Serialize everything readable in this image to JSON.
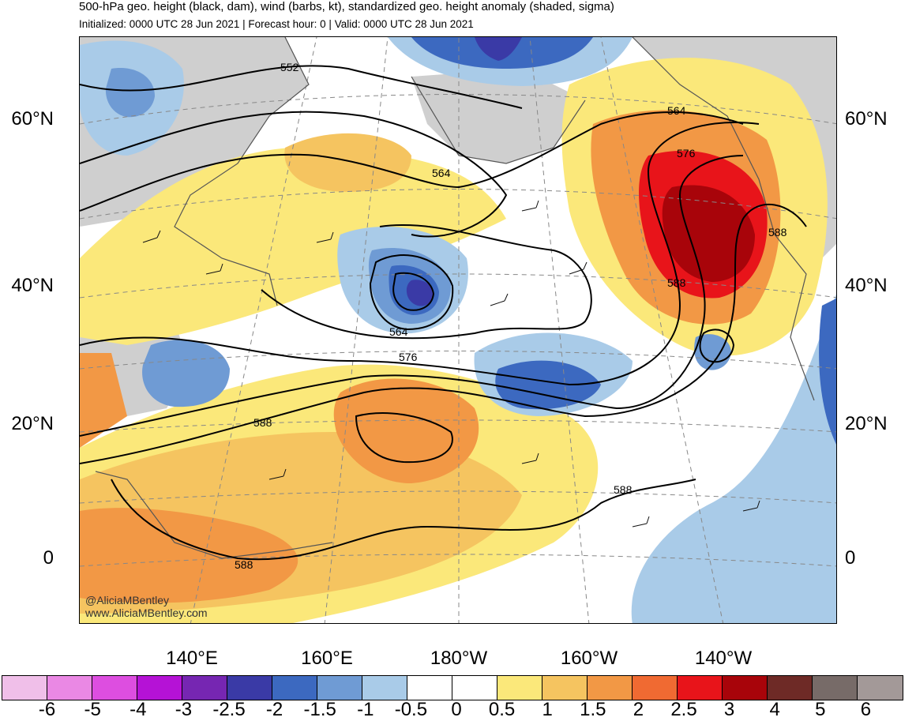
{
  "header": {
    "title": "500-hPa geo. height (black, dam), wind (barbs, kt), standardized geo. height anomaly (shaded, sigma)",
    "subtitle": "Initialized: 0000 UTC 28 Jun 2021 | Forecast hour: 0 | Valid: 0000 UTC 28 Jun 2021"
  },
  "axes": {
    "lat_labels": [
      "60°N",
      "40°N",
      "20°N",
      "0"
    ],
    "lon_labels": [
      "140°E",
      "160°E",
      "180°W",
      "160°W",
      "140°W"
    ]
  },
  "contour_labels": [
    "552",
    "564",
    "564",
    "564",
    "576",
    "576",
    "588",
    "588",
    "588",
    "588",
    "588"
  ],
  "credits": {
    "handle": "@AliciaMBentley",
    "website": "www.AliciaMBentley.com"
  },
  "colorbar": {
    "labels": [
      "-6",
      "-5",
      "-4",
      "-3",
      "-2.5",
      "-2",
      "-1.5",
      "-1",
      "-0.5",
      "0",
      "0.5",
      "1",
      "1.5",
      "2",
      "2.5",
      "3",
      "4",
      "5",
      "6"
    ],
    "colors": [
      "#f0bfe9",
      "#ea88e4",
      "#dd4ee0",
      "#b512d6",
      "#7626b2",
      "#3a3aa6",
      "#3c69c0",
      "#6f9bd4",
      "#a9cbe8",
      "#ffffff",
      "#ffffff",
      "#fbe87a",
      "#f5c460",
      "#f29845",
      "#f06a32",
      "#e8141a",
      "#a8040a",
      "#6e2a26",
      "#776b68",
      "#a39998"
    ]
  },
  "colors": {
    "land": "#cfcfcf",
    "coastline": "#555555",
    "contour": "#000000"
  }
}
